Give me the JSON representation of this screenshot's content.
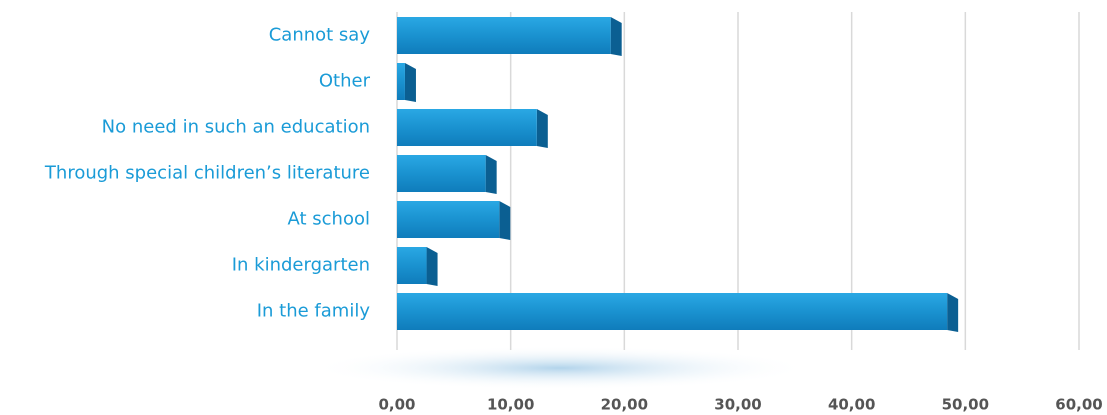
{
  "chart_data": {
    "type": "bar3d_horizontal",
    "categories": [
      "Cannot say",
      "Other",
      "No need in such an education",
      "Through special children’s literature",
      "At school",
      "In kindergarten",
      "In the family"
    ],
    "values": [
      18.8,
      0.7,
      12.3,
      7.8,
      9.0,
      2.6,
      48.4
    ],
    "color": "#1a96d4",
    "xlim": [
      0,
      60
    ],
    "xticks": [
      {
        "value": 0,
        "label": "0,00"
      },
      {
        "value": 10,
        "label": "10,00"
      },
      {
        "value": 20,
        "label": "20,00"
      },
      {
        "value": 30,
        "label": "30,00"
      },
      {
        "value": 40,
        "label": "40,00"
      },
      {
        "value": 50,
        "label": "50,00"
      },
      {
        "value": 60,
        "label": "60,00"
      }
    ],
    "grid": true
  }
}
